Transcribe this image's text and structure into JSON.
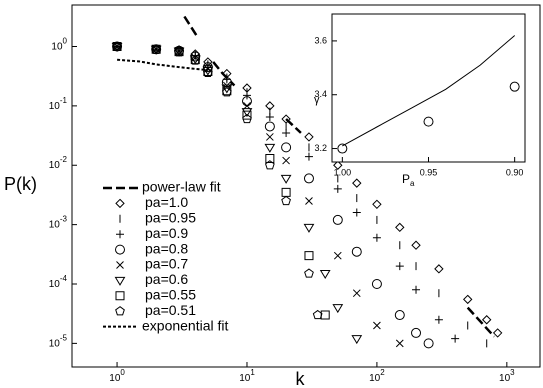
{
  "chart_data": [
    {
      "type": "scatter",
      "x_label": "k",
      "y_label": "P(k)",
      "log_x": true,
      "log_y": true,
      "xlim": [
        0.45,
        1800
      ],
      "ylim": [
        4e-06,
        5
      ],
      "xticks": [
        {
          "value": 1,
          "label": "10^0"
        },
        {
          "value": 10,
          "label": "10^1"
        },
        {
          "value": 100,
          "label": "10^2"
        },
        {
          "value": 1000,
          "label": "10^3"
        }
      ],
      "yticks": [
        {
          "value": 1e-05,
          "label": "10^-5"
        },
        {
          "value": 0.0001,
          "label": "10^-4"
        },
        {
          "value": 0.001,
          "label": "10^-3"
        },
        {
          "value": 0.01,
          "label": "10^-2"
        },
        {
          "value": 0.1,
          "label": "10^-1"
        },
        {
          "value": 1,
          "label": "10^0"
        }
      ],
      "legend": "left",
      "series": [
        {
          "name": "power-law fit",
          "style": "dashed",
          "color": "#000",
          "x": [
            3.3,
            4.2,
            null,
            5.5,
            6.5,
            8,
            null,
            20,
            26,
            null,
            500,
            800
          ],
          "values": [
            3.2,
            1.4,
            null,
            0.55,
            0.35,
            0.22,
            null,
            0.06,
            0.035,
            null,
            4e-05,
            1.3e-05
          ]
        },
        {
          "name": "pa=1.0",
          "marker": "diamond",
          "color": "#000",
          "x": [
            1,
            2,
            3,
            4,
            5,
            7,
            10,
            15,
            20,
            30,
            50,
            70,
            100,
            150,
            200,
            300,
            500,
            700,
            850
          ],
          "values": [
            1.0,
            0.9,
            0.88,
            0.75,
            0.55,
            0.35,
            0.2,
            0.1,
            0.06,
            0.03,
            0.01,
            0.005,
            0.0022,
            0.0009,
            0.00045,
            0.00018,
            5.5e-05,
            2.5e-05,
            1.5e-05
          ]
        },
        {
          "name": "pa=0.95",
          "marker": "vline",
          "color": "#000",
          "x": [
            1,
            2,
            3,
            4,
            5,
            7,
            10,
            15,
            20,
            30,
            50,
            70,
            100,
            150,
            200,
            300,
            500,
            700
          ],
          "values": [
            1.0,
            0.9,
            0.85,
            0.72,
            0.5,
            0.3,
            0.17,
            0.08,
            0.045,
            0.02,
            0.006,
            0.0028,
            0.0012,
            0.00045,
            0.0002,
            7e-05,
            2e-05,
            1e-05
          ]
        },
        {
          "name": "pa=0.9",
          "marker": "plus",
          "color": "#000",
          "x": [
            1,
            2,
            3,
            4,
            5,
            7,
            10,
            15,
            20,
            30,
            50,
            70,
            100,
            150,
            200,
            300,
            400
          ],
          "values": [
            1.0,
            0.9,
            0.85,
            0.7,
            0.48,
            0.28,
            0.15,
            0.065,
            0.035,
            0.014,
            0.004,
            0.0016,
            0.0006,
            0.0002,
            8e-05,
            2.5e-05,
            1.2e-05
          ]
        },
        {
          "name": "pa=0.8",
          "marker": "circle",
          "color": "#000",
          "x": [
            1,
            2,
            3,
            4,
            5,
            7,
            10,
            15,
            20,
            30,
            50,
            70,
            100,
            150,
            200,
            250
          ],
          "values": [
            1.0,
            0.9,
            0.85,
            0.68,
            0.45,
            0.25,
            0.12,
            0.045,
            0.02,
            0.006,
            0.0012,
            0.00035,
            0.0001,
            3e-05,
            1.5e-05,
            1e-05
          ]
        },
        {
          "name": "pa=0.7",
          "marker": "cross",
          "color": "#000",
          "x": [
            1,
            2,
            3,
            4,
            5,
            7,
            10,
            15,
            20,
            30,
            50,
            70,
            100,
            150
          ],
          "values": [
            1.0,
            0.9,
            0.85,
            0.65,
            0.42,
            0.22,
            0.1,
            0.03,
            0.012,
            0.0025,
            0.0003,
            7e-05,
            2e-05,
            1e-05
          ]
        },
        {
          "name": "pa=0.6",
          "marker": "triangle-down",
          "color": "#000",
          "x": [
            1,
            2,
            3,
            4,
            5,
            7,
            10,
            15,
            20,
            30,
            40,
            50,
            70
          ],
          "values": [
            1.0,
            0.9,
            0.83,
            0.62,
            0.4,
            0.2,
            0.08,
            0.02,
            0.006,
            0.0009,
            0.00015,
            4e-05,
            1.2e-05
          ]
        },
        {
          "name": "pa=0.55",
          "marker": "square",
          "color": "#000",
          "x": [
            1,
            2,
            3,
            4,
            5,
            7,
            10,
            15,
            20,
            30,
            40
          ],
          "values": [
            1.0,
            0.9,
            0.82,
            0.6,
            0.38,
            0.18,
            0.07,
            0.013,
            0.0035,
            0.0003,
            3e-05
          ]
        },
        {
          "name": "pa=0.51",
          "marker": "pentagon",
          "color": "#000",
          "x": [
            1,
            2,
            3,
            4,
            5,
            7,
            10,
            15,
            20,
            30,
            35
          ],
          "values": [
            1.0,
            0.88,
            0.8,
            0.58,
            0.36,
            0.17,
            0.06,
            0.01,
            0.0025,
            0.00015,
            3e-05
          ]
        },
        {
          "name": "exponential fit",
          "style": "dotted",
          "color": "#000",
          "x": [
            1,
            1.5,
            2,
            3,
            4,
            5
          ],
          "values": [
            0.6,
            0.56,
            0.5,
            0.45,
            0.42,
            0.4
          ]
        }
      ]
    },
    {
      "type": "line",
      "y_label": "γ",
      "x_label": {
        "text": "P",
        "sub": "a"
      },
      "xlim": [
        1.006,
        0.894
      ],
      "ylim": [
        3.15,
        3.7
      ],
      "xticks": [
        {
          "value": 1,
          "label": "1.00"
        },
        {
          "value": 0.95,
          "label": "0.95"
        },
        {
          "value": 0.9,
          "label": "0.90"
        }
      ],
      "yticks": [
        3.2,
        3.4,
        3.6
      ],
      "series": [
        {
          "style": "solid",
          "color": "#000",
          "x": [
            1.0,
            0.98,
            0.96,
            0.94,
            0.92,
            0.9
          ],
          "values": [
            3.21,
            3.28,
            3.35,
            3.42,
            3.51,
            3.62
          ]
        },
        {
          "marker": "circle",
          "color": "#000",
          "x": [
            1.0,
            0.95,
            0.9
          ],
          "values": [
            3.2,
            3.3,
            3.43
          ]
        }
      ]
    }
  ]
}
